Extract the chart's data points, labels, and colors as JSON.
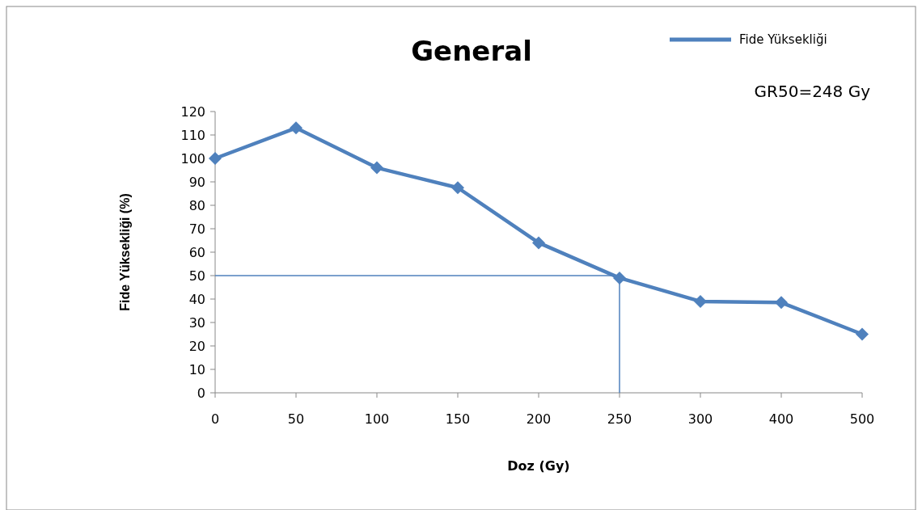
{
  "chart_data": {
    "type": "line",
    "title": "General",
    "xlabel": "Doz (Gy)",
    "ylabel": "Fide Yüksekliği (%)",
    "categories": [
      "0",
      "50",
      "100",
      "150",
      "200",
      "250",
      "300",
      "400",
      "500"
    ],
    "series": [
      {
        "name": "Fide Yüksekliği",
        "color": "#4f81bd",
        "values": [
          100,
          113,
          96,
          87.5,
          64,
          49,
          39,
          38.5,
          25
        ]
      }
    ],
    "ylim": [
      0,
      120
    ],
    "yticks": [
      0,
      10,
      20,
      30,
      40,
      50,
      60,
      70,
      80,
      90,
      100,
      110,
      120
    ],
    "ref_lines": [
      {
        "axis": "y",
        "value": 50,
        "color": "#4f81bd"
      },
      {
        "axis": "x",
        "value": "250",
        "color": "#4f81bd"
      }
    ],
    "annotations": [
      "GR50=248 Gy"
    ],
    "legend": "top right",
    "marker": "diamond",
    "grid": false
  }
}
